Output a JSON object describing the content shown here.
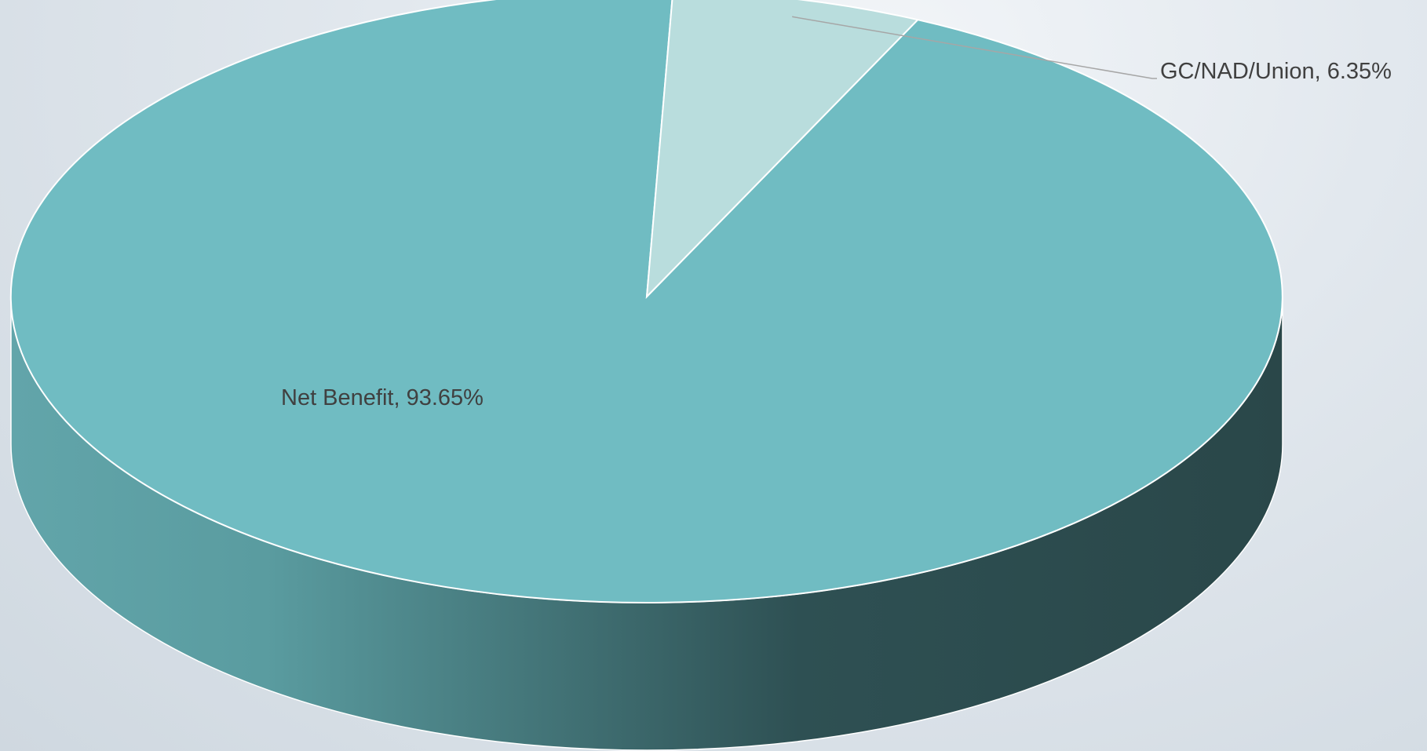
{
  "chart_data": {
    "type": "pie",
    "style": "3d",
    "title": "",
    "slices": [
      {
        "name": "Net Benefit",
        "value": 93.65,
        "label": "Net Benefit, 93.65%",
        "color": "#70bcc2"
      },
      {
        "name": "GC/NAD/Union",
        "value": 6.35,
        "label": "GC/NAD/Union, 6.35%",
        "color": "#b9dddd"
      }
    ],
    "side_colors": [
      "#62a5aa",
      "#2c4b4e"
    ],
    "edge_color": "#ffffff",
    "leader_line_color": "#a6a6a6",
    "legend": "none"
  }
}
